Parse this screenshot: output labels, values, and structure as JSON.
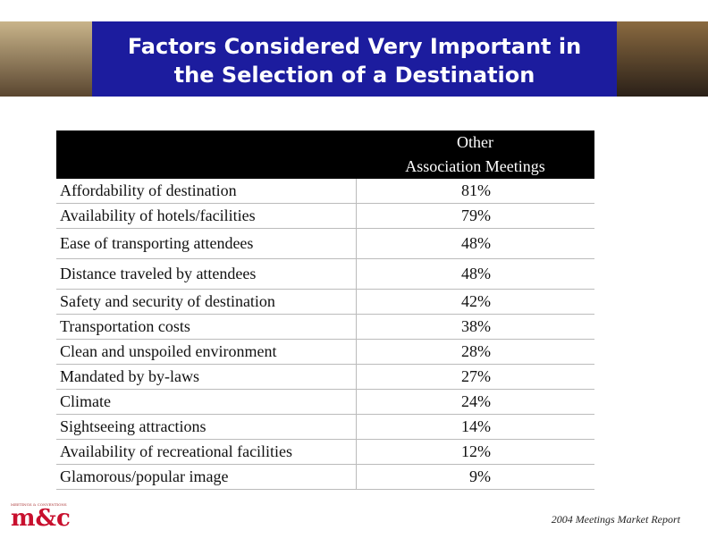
{
  "header": {
    "title_lines": [
      "Factors Considered Very Important in",
      "the Selection of a Destination"
    ]
  },
  "table": {
    "column_header": [
      "Other",
      "Association Meetings"
    ],
    "rows": [
      [
        "Affordability of destination",
        "81%"
      ],
      [
        "Availability of hotels/facilities",
        "79%"
      ],
      [
        "Ease of transporting attendees",
        "48%"
      ],
      [
        "Distance traveled by attendees",
        "48%"
      ],
      [
        "Safety and security of destination",
        "42%"
      ],
      [
        "Transportation costs",
        "38%"
      ],
      [
        "Clean and unspoiled environment",
        "28%"
      ],
      [
        "Mandated by by-laws",
        "27%"
      ],
      [
        "Climate",
        "24%"
      ],
      [
        "Sightseeing attractions",
        "14%"
      ],
      [
        "Availability of recreational facilities",
        "12%"
      ],
      [
        "Glamorous/popular image",
        "9%"
      ]
    ]
  },
  "footer": {
    "logo": "m&c",
    "tagline": "MEETINGS & CONVENTIONS",
    "source": "2004 Meetings Market Report"
  }
}
